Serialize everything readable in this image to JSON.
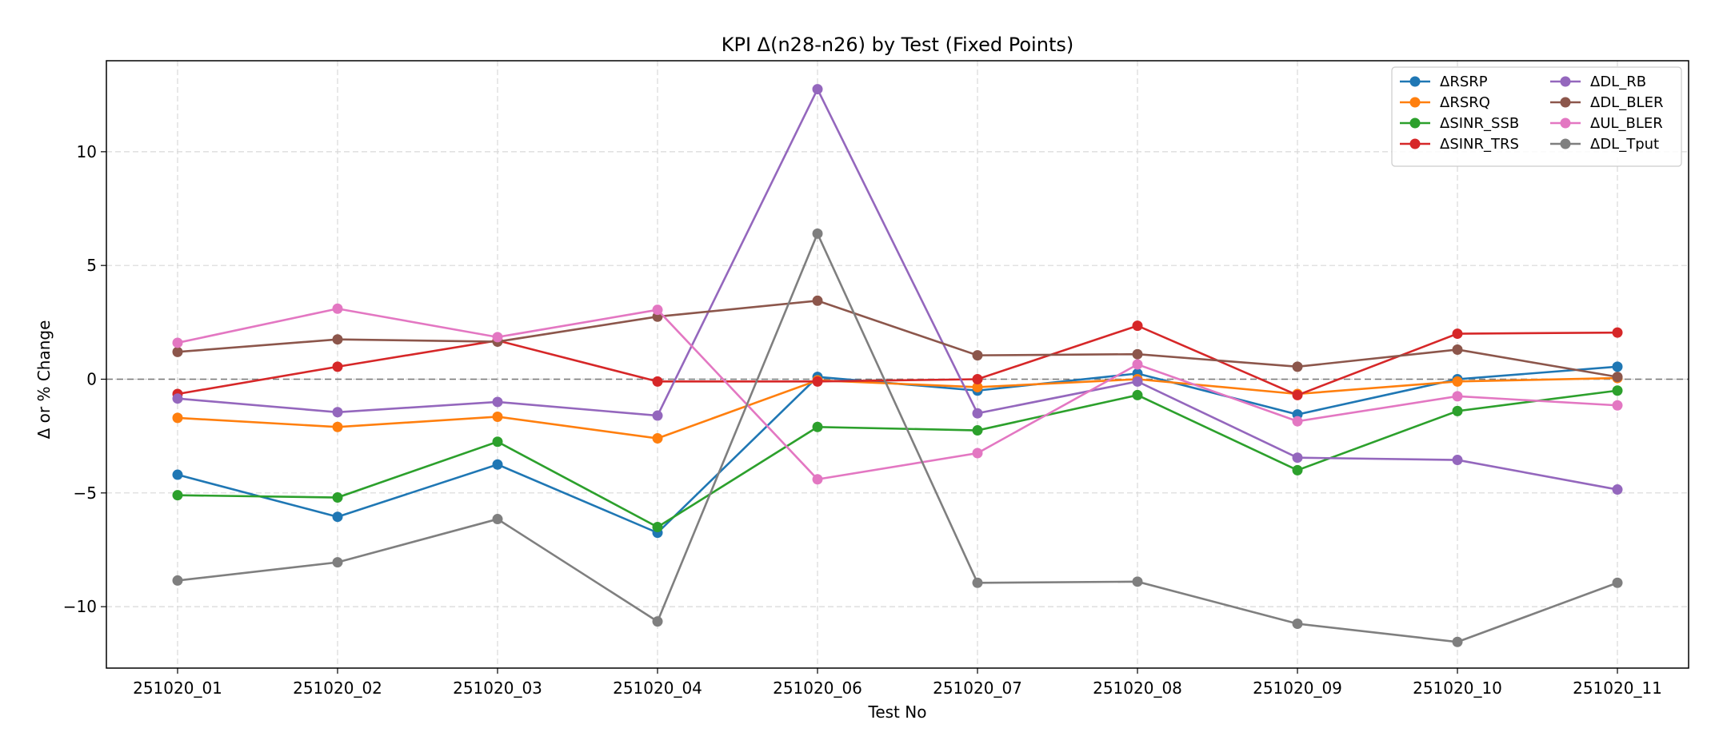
{
  "chart_data": {
    "type": "line",
    "title": "KPI Δ(n28-n26) by Test (Fixed Points)",
    "xlabel": "Test No",
    "ylabel": "Δ or % Change",
    "categories": [
      "251020_01",
      "251020_02",
      "251020_03",
      "251020_04",
      "251020_06",
      "251020_07",
      "251020_08",
      "251020_09",
      "251020_10",
      "251020_11"
    ],
    "ylim": [
      -12.7,
      14.0
    ],
    "yticks": [
      -10,
      -5,
      0,
      5,
      10
    ],
    "grid": true,
    "zero_line": true,
    "legend_position": "top-right",
    "legend_columns": 2,
    "series": [
      {
        "name": "ΔRSRP",
        "color": "#1f77b4",
        "values": [
          -4.2,
          -6.05,
          -3.75,
          -6.75,
          0.1,
          -0.5,
          0.25,
          -1.55,
          0.0,
          0.55
        ]
      },
      {
        "name": "ΔRSRQ",
        "color": "#ff7f0e",
        "values": [
          -1.7,
          -2.1,
          -1.65,
          -2.6,
          -0.05,
          -0.35,
          0.0,
          -0.65,
          -0.1,
          0.05
        ]
      },
      {
        "name": "ΔSINR_SSB",
        "color": "#2ca02c",
        "values": [
          -5.1,
          -5.2,
          -2.75,
          -6.5,
          -2.1,
          -2.25,
          -0.7,
          -4.0,
          -1.4,
          -0.5
        ]
      },
      {
        "name": "ΔSINR_TRS",
        "color": "#d62728",
        "values": [
          -0.65,
          0.55,
          1.7,
          -0.1,
          -0.1,
          0.0,
          2.35,
          -0.7,
          2.0,
          2.05
        ]
      },
      {
        "name": "ΔDL_RB",
        "color": "#9467bd",
        "values": [
          -0.85,
          -1.45,
          -1.0,
          -1.6,
          12.75,
          -1.5,
          -0.1,
          -3.45,
          -3.55,
          -4.85
        ]
      },
      {
        "name": "ΔDL_BLER",
        "color": "#8c564b",
        "values": [
          1.2,
          1.75,
          1.65,
          2.75,
          3.45,
          1.05,
          1.1,
          0.55,
          1.3,
          0.1
        ]
      },
      {
        "name": "ΔUL_BLER",
        "color": "#e377c2",
        "values": [
          1.6,
          3.1,
          1.85,
          3.05,
          -4.4,
          -3.25,
          0.65,
          -1.85,
          -0.75,
          -1.15
        ]
      },
      {
        "name": "ΔDL_Tput",
        "color": "#7f7f7f",
        "values": [
          -8.85,
          -8.05,
          -6.15,
          -10.65,
          6.4,
          -8.95,
          -8.9,
          -10.75,
          -11.55,
          -8.95
        ]
      }
    ]
  }
}
